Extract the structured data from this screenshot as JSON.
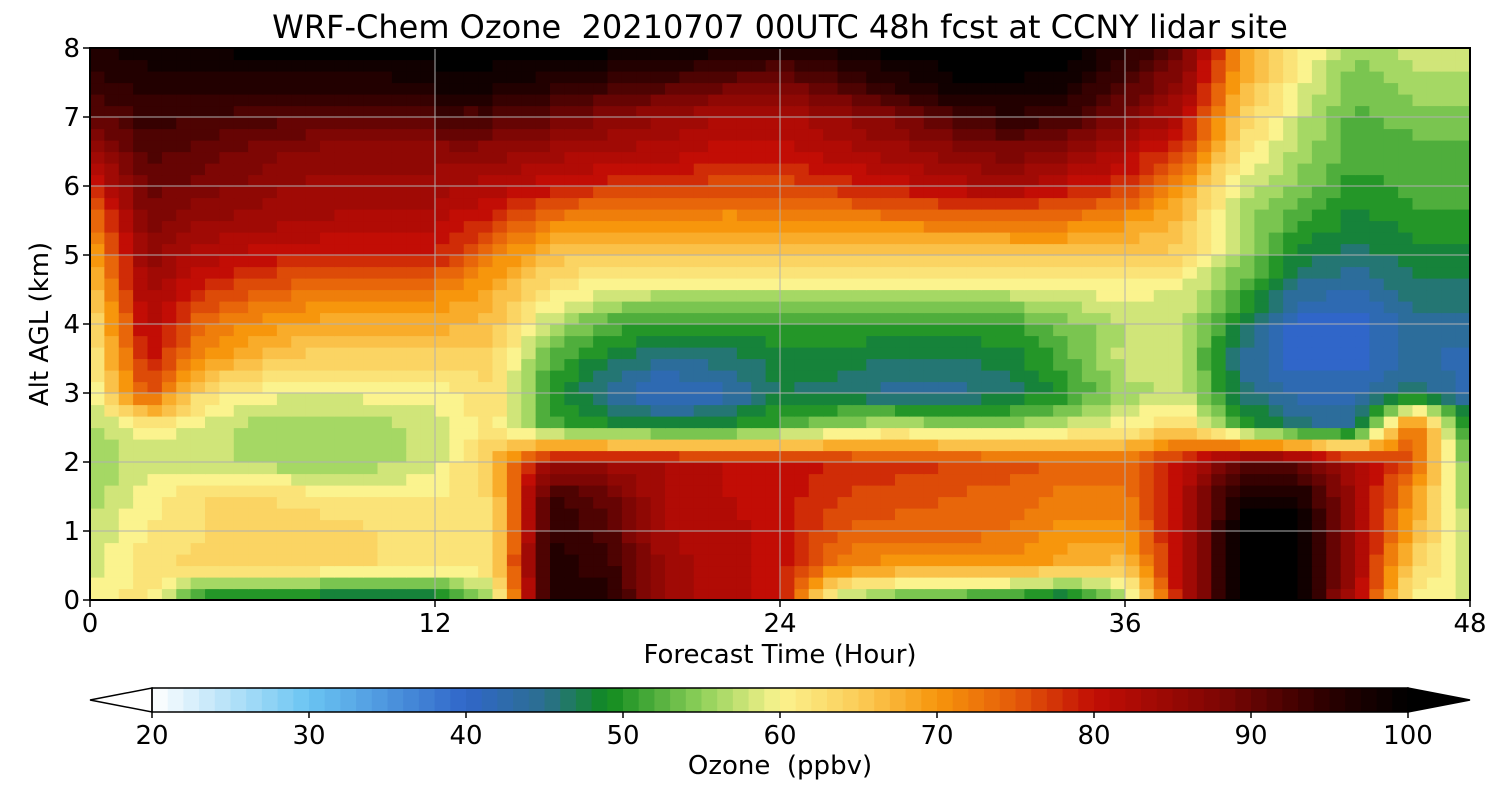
{
  "chart_data": {
    "type": "heatmap",
    "title": "WRF-Chem Ozone  20210707 00UTC 48h fcst at CCNY lidar site",
    "xlabel": "Forecast Time (Hour)",
    "ylabel": "Alt AGL (km)",
    "xlim": [
      0,
      48
    ],
    "ylim": [
      0,
      8
    ],
    "x_ticks": [
      "0",
      "12",
      "24",
      "36",
      "48"
    ],
    "y_ticks": [
      "0",
      "1",
      "2",
      "3",
      "4",
      "5",
      "6",
      "7",
      "8"
    ],
    "grid": true,
    "colorbar": {
      "label": "Ozone  (ppbv)",
      "orientation": "horizontal",
      "placement": "bottom",
      "extend": "both",
      "range": [
        20,
        100
      ],
      "ticks": [
        "20",
        "30",
        "40",
        "50",
        "60",
        "70",
        "80",
        "90",
        "100"
      ],
      "colors": [
        {
          "v": 20,
          "c": "#ffffff"
        },
        {
          "v": 30,
          "c": "#6ac4f2"
        },
        {
          "v": 40,
          "c": "#3066c9"
        },
        {
          "v": 45,
          "c": "#2b6f8f"
        },
        {
          "v": 49,
          "c": "#0f8a1e"
        },
        {
          "v": 55,
          "c": "#8fd15a"
        },
        {
          "v": 60,
          "c": "#fbf38e"
        },
        {
          "v": 65,
          "c": "#fbcc58"
        },
        {
          "v": 70,
          "c": "#f7960c"
        },
        {
          "v": 75,
          "c": "#e45a09"
        },
        {
          "v": 80,
          "c": "#c20d05"
        },
        {
          "v": 88,
          "c": "#7e0604"
        },
        {
          "v": 95,
          "c": "#2a0000"
        },
        {
          "v": 100,
          "c": "#000000"
        }
      ]
    },
    "x": [
      0,
      2,
      4,
      6,
      8,
      10,
      12,
      14,
      16,
      18,
      20,
      22,
      24,
      26,
      28,
      30,
      32,
      34,
      36,
      38,
      40,
      42,
      44,
      46,
      48
    ],
    "y": [
      0,
      0.5,
      1,
      1.5,
      2,
      2.5,
      3,
      3.5,
      4,
      4.5,
      5,
      5.5,
      6,
      6.5,
      7,
      7.5,
      8
    ],
    "z": [
      [
        60,
        62,
        48,
        46,
        46,
        46,
        46,
        56,
        96,
        96,
        84,
        82,
        80,
        56,
        52,
        50,
        48,
        44,
        54,
        82,
        100,
        100,
        82,
        60,
        58
      ],
      [
        58,
        62,
        64,
        64,
        64,
        63,
        62,
        63,
        96,
        94,
        84,
        82,
        80,
        72,
        70,
        70,
        70,
        68,
        66,
        82,
        100,
        100,
        84,
        64,
        58
      ],
      [
        57,
        61,
        63,
        64,
        64,
        63,
        62,
        62,
        95,
        92,
        83,
        82,
        80,
        75,
        74,
        74,
        73,
        70,
        70,
        82,
        100,
        100,
        84,
        68,
        56
      ],
      [
        56,
        60,
        63,
        63,
        62,
        61,
        61,
        63,
        94,
        90,
        82,
        81,
        80,
        77,
        76,
        75,
        74,
        72,
        72,
        82,
        98,
        98,
        84,
        70,
        55
      ],
      [
        55,
        58,
        58,
        56,
        55,
        56,
        58,
        66,
        84,
        84,
        83,
        81,
        80,
        79,
        78,
        77,
        76,
        75,
        74,
        80,
        90,
        90,
        82,
        75,
        52
      ],
      [
        56,
        60,
        58,
        56,
        55,
        56,
        58,
        62,
        52,
        50,
        49,
        49,
        52,
        56,
        58,
        56,
        56,
        58,
        60,
        64,
        52,
        46,
        44,
        76,
        48
      ],
      [
        58,
        76,
        62,
        60,
        59,
        60,
        60,
        63,
        50,
        44,
        40,
        42,
        47,
        46,
        44,
        44,
        46,
        50,
        56,
        58,
        46,
        42,
        42,
        46,
        42
      ],
      [
        60,
        80,
        70,
        66,
        64,
        64,
        64,
        64,
        52,
        48,
        45,
        46,
        48,
        48,
        47,
        47,
        48,
        52,
        58,
        57,
        45,
        40,
        40,
        44,
        42
      ],
      [
        62,
        82,
        73,
        70,
        68,
        68,
        68,
        66,
        57,
        52,
        50,
        50,
        51,
        51,
        50,
        50,
        51,
        54,
        57,
        57,
        48,
        40,
        40,
        44,
        44
      ],
      [
        65,
        84,
        78,
        75,
        73,
        72,
        72,
        68,
        62,
        59,
        58,
        58,
        58,
        58,
        58,
        58,
        58,
        59,
        60,
        59,
        52,
        44,
        43,
        46,
        46
      ],
      [
        68,
        86,
        82,
        80,
        79,
        79,
        79,
        72,
        66,
        64,
        64,
        64,
        64,
        64,
        64,
        64,
        65,
        66,
        66,
        64,
        56,
        48,
        46,
        48,
        48
      ],
      [
        72,
        88,
        85,
        84,
        83,
        82,
        82,
        78,
        72,
        70,
        70,
        70,
        70,
        71,
        72,
        73,
        73,
        72,
        70,
        66,
        56,
        52,
        48,
        50,
        50
      ],
      [
        78,
        90,
        88,
        86,
        84,
        84,
        84,
        82,
        80,
        78,
        78,
        76,
        76,
        78,
        80,
        82,
        84,
        80,
        78,
        70,
        58,
        55,
        50,
        52,
        52
      ],
      [
        84,
        92,
        90,
        88,
        86,
        86,
        86,
        86,
        84,
        83,
        82,
        80,
        80,
        82,
        84,
        86,
        88,
        86,
        82,
        76,
        62,
        56,
        52,
        52,
        52
      ],
      [
        90,
        94,
        93,
        92,
        91,
        91,
        92,
        92,
        90,
        87,
        85,
        83,
        82,
        85,
        88,
        92,
        95,
        93,
        88,
        82,
        65,
        58,
        52,
        54,
        54
      ],
      [
        94,
        96,
        96,
        96,
        96,
        96,
        98,
        98,
        96,
        94,
        92,
        90,
        89,
        92,
        96,
        99,
        99,
        98,
        92,
        86,
        68,
        60,
        54,
        56,
        56
      ],
      [
        97,
        98,
        99,
        100,
        100,
        100,
        100,
        100,
        100,
        100,
        100,
        98,
        96,
        98,
        100,
        100,
        100,
        100,
        96,
        90,
        70,
        62,
        55,
        58,
        58
      ]
    ]
  }
}
